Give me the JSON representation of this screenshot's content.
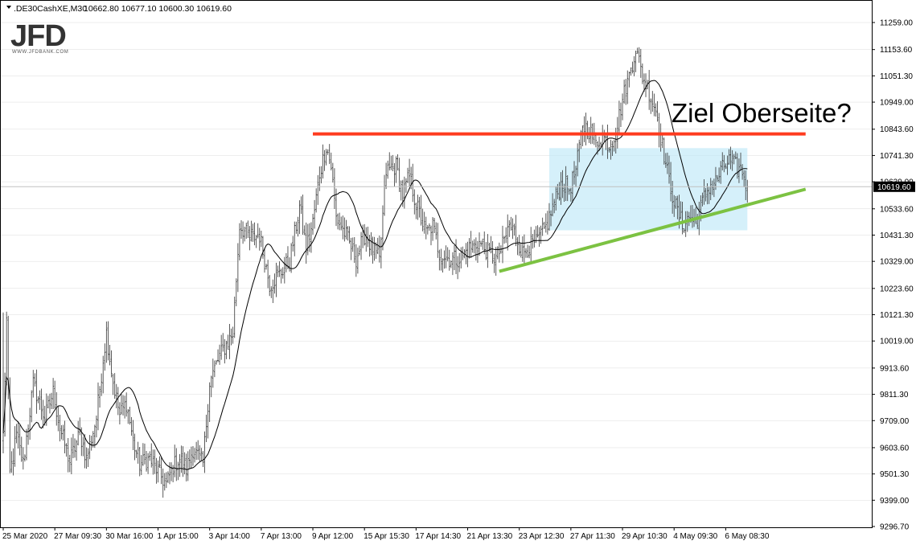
{
  "header": {
    "symbol_label": ".DE30CashXE,M30",
    "ohlc": "10662.80 10677.10 10600.30 10619.60"
  },
  "logo": {
    "wordmark": "JFD",
    "url_text": "WWW.JFDBANK.COM"
  },
  "colors": {
    "candle": "#333333",
    "moving_average": "#000000",
    "resistance": "#ff3b1f",
    "support": "#7cc242",
    "range_box": "#bfe8f7",
    "price_tag_bg": "#000000",
    "price_tag_text": "#ffffff",
    "grid": "#dcdcdc"
  },
  "chart_data": {
    "type": "candlestick",
    "symbol": ".DE30CashXE",
    "timeframe": "M30",
    "last_price": 10619.6,
    "last_price_label": "10619.60",
    "y_range": [
      9250,
      11300
    ],
    "y_ticks": [
      11259.0,
      11153.6,
      11051.3,
      10949.0,
      10843.6,
      10741.3,
      10639.0,
      10533.6,
      10431.3,
      10329.0,
      10223.6,
      10121.3,
      10019.0,
      9913.6,
      9811.3,
      9709.0,
      9603.6,
      9501.3,
      9399.0,
      9296.7
    ],
    "y_tick_labels": [
      "11259.00",
      "11153.60",
      "11051.30",
      "10949.00",
      "10843.60",
      "10741.30",
      "10639.00",
      "10533.60",
      "10431.30",
      "10329.00",
      "10223.60",
      "10121.30",
      "10019.00",
      "9913.60",
      "9811.30",
      "9709.00",
      "9603.60",
      "9501.30",
      "9399.00",
      "9296.70"
    ],
    "x_tick_labels": [
      "25 Mar 2020",
      "27 Mar 09:30",
      "30 Mar 16:00",
      "1 Apr 15:00",
      "3 Apr 14:00",
      "7 Apr 13:00",
      "9 Apr 12:00",
      "15 Apr 15:30",
      "17 Apr 14:30",
      "21 Apr 13:30",
      "23 Apr 12:30",
      "27 Apr 11:30",
      "29 Apr 10:30",
      "4 May 09:30",
      "6 May 08:30"
    ],
    "x_tick_index": [
      0,
      31,
      62,
      93,
      124,
      155,
      186,
      217,
      248,
      279,
      310,
      341,
      372,
      403,
      434
    ],
    "anchors": [
      [
        0,
        9650
      ],
      [
        2,
        10100
      ],
      [
        4,
        9500
      ],
      [
        8,
        9650
      ],
      [
        12,
        9540
      ],
      [
        18,
        9850
      ],
      [
        25,
        9720
      ],
      [
        30,
        9820
      ],
      [
        34,
        9680
      ],
      [
        40,
        9550
      ],
      [
        46,
        9660
      ],
      [
        50,
        9560
      ],
      [
        56,
        9720
      ],
      [
        60,
        9950
      ],
      [
        62,
        10050
      ],
      [
        66,
        9860
      ],
      [
        70,
        9730
      ],
      [
        74,
        9780
      ],
      [
        78,
        9630
      ],
      [
        82,
        9540
      ],
      [
        88,
        9560
      ],
      [
        94,
        9500
      ],
      [
        98,
        9460
      ],
      [
        102,
        9530
      ],
      [
        106,
        9560
      ],
      [
        110,
        9520
      ],
      [
        114,
        9600
      ],
      [
        120,
        9540
      ],
      [
        124,
        9860
      ],
      [
        130,
        9960
      ],
      [
        138,
        10050
      ],
      [
        142,
        10470
      ],
      [
        148,
        10420
      ],
      [
        154,
        10430
      ],
      [
        160,
        10240
      ],
      [
        166,
        10280
      ],
      [
        172,
        10330
      ],
      [
        178,
        10540
      ],
      [
        182,
        10380
      ],
      [
        186,
        10480
      ],
      [
        190,
        10670
      ],
      [
        194,
        10780
      ],
      [
        197,
        10700
      ],
      [
        200,
        10500
      ],
      [
        206,
        10430
      ],
      [
        212,
        10340
      ],
      [
        217,
        10430
      ],
      [
        222,
        10380
      ],
      [
        226,
        10330
      ],
      [
        230,
        10680
      ],
      [
        236,
        10700
      ],
      [
        240,
        10590
      ],
      [
        244,
        10660
      ],
      [
        248,
        10550
      ],
      [
        254,
        10440
      ],
      [
        258,
        10470
      ],
      [
        262,
        10360
      ],
      [
        268,
        10340
      ],
      [
        274,
        10340
      ],
      [
        280,
        10380
      ],
      [
        286,
        10400
      ],
      [
        292,
        10360
      ],
      [
        296,
        10340
      ],
      [
        300,
        10390
      ],
      [
        304,
        10470
      ],
      [
        308,
        10430
      ],
      [
        312,
        10360
      ],
      [
        316,
        10390
      ],
      [
        320,
        10400
      ],
      [
        326,
        10460
      ],
      [
        332,
        10580
      ],
      [
        336,
        10640
      ],
      [
        340,
        10610
      ],
      [
        344,
        10680
      ],
      [
        348,
        10860
      ],
      [
        352,
        10840
      ],
      [
        356,
        10790
      ],
      [
        360,
        10820
      ],
      [
        364,
        10780
      ],
      [
        368,
        10830
      ],
      [
        372,
        10960
      ],
      [
        376,
        11050
      ],
      [
        380,
        11160
      ],
      [
        384,
        11050
      ],
      [
        388,
        10990
      ],
      [
        392,
        10920
      ],
      [
        396,
        10780
      ],
      [
        400,
        10640
      ],
      [
        404,
        10540
      ],
      [
        408,
        10470
      ],
      [
        412,
        10500
      ],
      [
        416,
        10480
      ],
      [
        420,
        10560
      ],
      [
        424,
        10620
      ],
      [
        428,
        10640
      ],
      [
        432,
        10690
      ],
      [
        436,
        10720
      ],
      [
        440,
        10700
      ],
      [
        444,
        10680
      ],
      [
        447,
        10619.6
      ]
    ],
    "annotations": {
      "resistance_line": {
        "level": 10825,
        "from_index": 186,
        "to_index": 482
      },
      "support_line": {
        "from": [
          298,
          10290
        ],
        "to": [
          482,
          10610
        ]
      },
      "range_box": {
        "from_index": 328,
        "to_index": 447,
        "top": 10770,
        "bottom": 10450
      },
      "label": "Ziel Oberseite?"
    }
  }
}
